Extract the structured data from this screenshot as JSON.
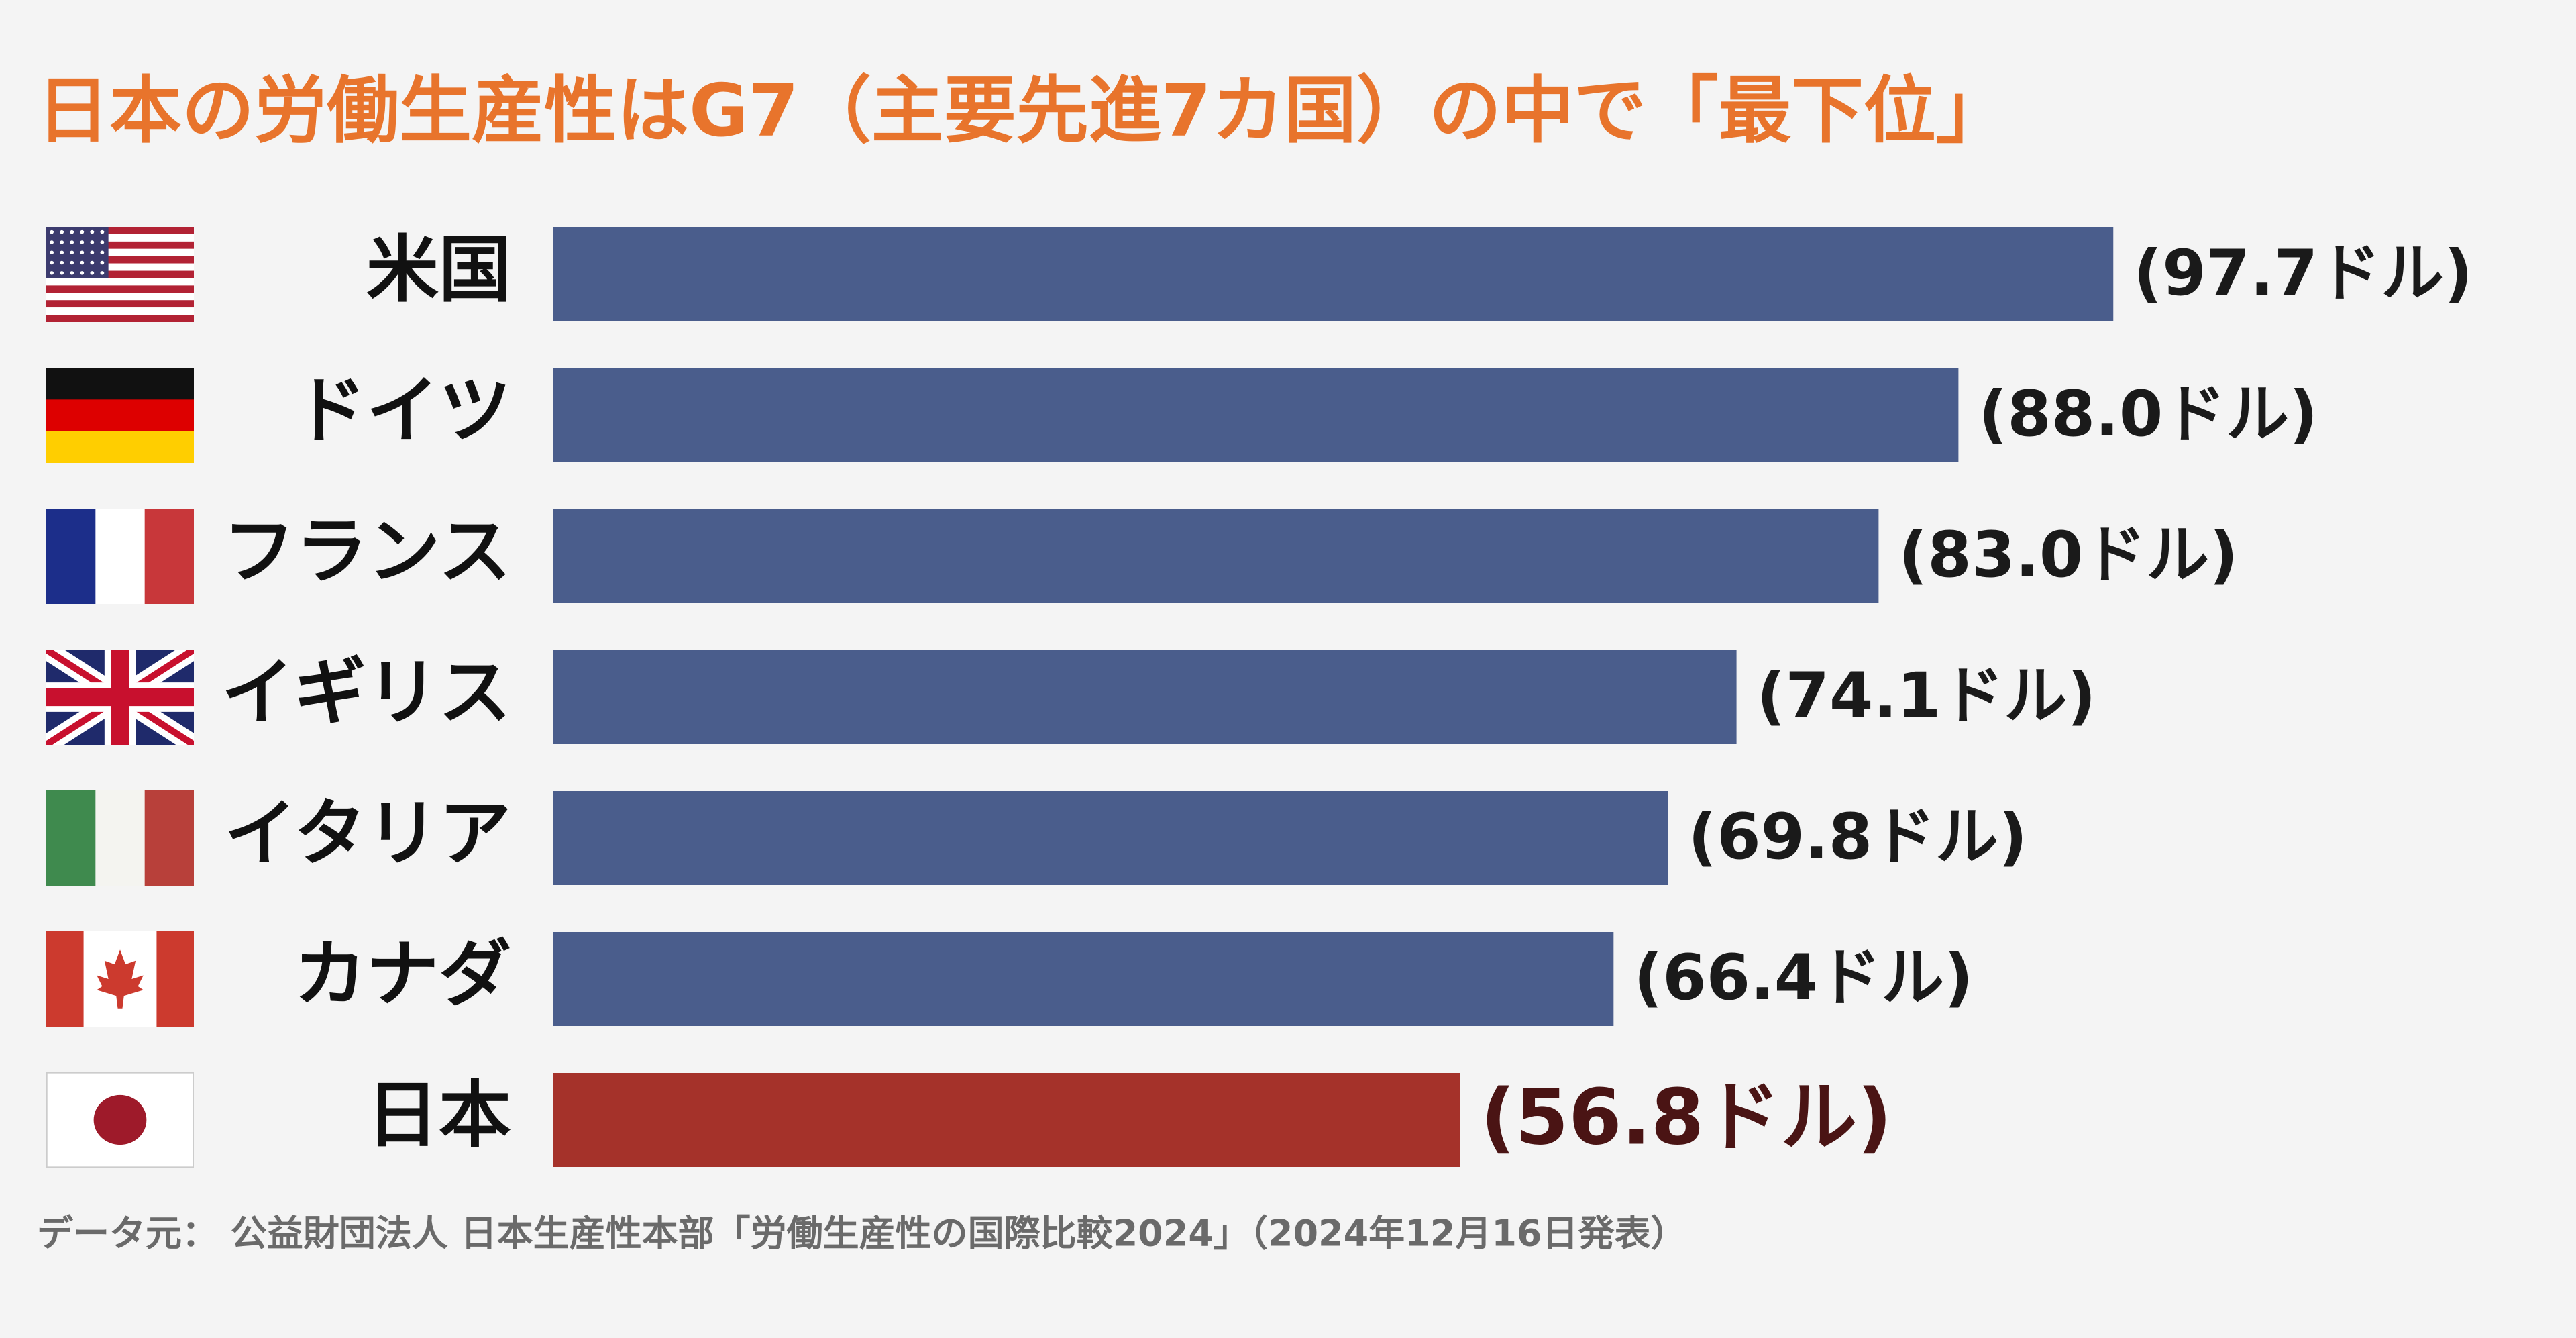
{
  "chart_data": {
    "type": "bar",
    "orientation": "horizontal",
    "title": "日本の労働生産性はG7（主要先進7カ国）の中で「最下位」",
    "categories": [
      "米国",
      "ドイツ",
      "フランス",
      "イギリス",
      "イタリア",
      "カナダ",
      "日本"
    ],
    "values": [
      97.7,
      88.0,
      83.0,
      74.1,
      69.8,
      66.4,
      56.8
    ],
    "value_labels": [
      "(97.7ドル)",
      "(88.0ドル)",
      "(83.0ドル)",
      "(74.1ドル)",
      "(69.8ドル)",
      "(66.4ドル)",
      "(56.8ドル)"
    ],
    "colors": [
      "#4a5d8c",
      "#4a5d8c",
      "#4a5d8c",
      "#4a5d8c",
      "#4a5d8c",
      "#4a5d8c",
      "#a5322a"
    ],
    "label_colors": [
      "#1a1a1a",
      "#1a1a1a",
      "#1a1a1a",
      "#1a1a1a",
      "#1a1a1a",
      "#1a1a1a",
      "#4a1414"
    ],
    "source": "データ元： 公益財団法人 日本生産性本部「労働生産性の国際比較2024」（2024年12月16日発表）"
  }
}
